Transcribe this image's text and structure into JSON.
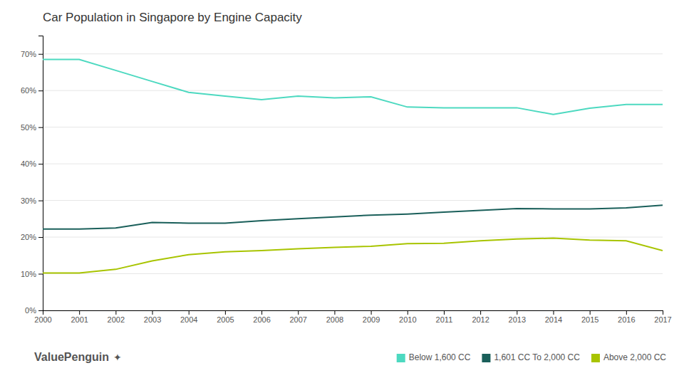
{
  "chart_data": {
    "type": "line",
    "title": "Car Population in Singapore by Engine Capacity",
    "x": [
      2000,
      2001,
      2002,
      2003,
      2004,
      2005,
      2006,
      2007,
      2008,
      2009,
      2010,
      2011,
      2012,
      2013,
      2014,
      2015,
      2016,
      2017
    ],
    "series": [
      {
        "name": "Below 1,600 CC",
        "color": "#4DD9C0",
        "values": [
          0.685,
          0.685,
          0.655,
          0.625,
          0.595,
          0.585,
          0.575,
          0.585,
          0.58,
          0.583,
          0.555,
          0.553,
          0.553,
          0.553,
          0.535,
          0.552,
          0.562,
          0.562
        ]
      },
      {
        "name": "1,601 CC To 2,000 CC",
        "color": "#1A5F5A",
        "values": [
          0.222,
          0.222,
          0.225,
          0.24,
          0.238,
          0.238,
          0.245,
          0.25,
          0.255,
          0.26,
          0.263,
          0.268,
          0.273,
          0.278,
          0.277,
          0.277,
          0.28,
          0.287
        ]
      },
      {
        "name": "Above 2,000 CC",
        "color": "#A8C400",
        "values": [
          0.102,
          0.102,
          0.112,
          0.135,
          0.152,
          0.16,
          0.163,
          0.168,
          0.172,
          0.175,
          0.182,
          0.183,
          0.19,
          0.195,
          0.197,
          0.192,
          0.19,
          0.163
        ]
      }
    ],
    "xlim": [
      2000,
      2017
    ],
    "xticks": [
      2000,
      2001,
      2002,
      2003,
      2004,
      2005,
      2006,
      2007,
      2008,
      2009,
      2010,
      2011,
      2012,
      2013,
      2014,
      2015,
      2016,
      2017
    ],
    "ylim": [
      0,
      0.75
    ],
    "yticks": [
      {
        "value": 0.0,
        "label": "0%"
      },
      {
        "value": 0.1,
        "label": "10%"
      },
      {
        "value": 0.2,
        "label": "20%"
      },
      {
        "value": 0.3,
        "label": "30%"
      },
      {
        "value": 0.4,
        "label": "40%"
      },
      {
        "value": 0.5,
        "label": "50%"
      },
      {
        "value": 0.6,
        "label": "60%"
      },
      {
        "value": 0.7,
        "label": "70%"
      }
    ],
    "grid": true,
    "legend": "bottom-right",
    "annotations": [
      "ValuePenguin",
      "✦"
    ]
  }
}
